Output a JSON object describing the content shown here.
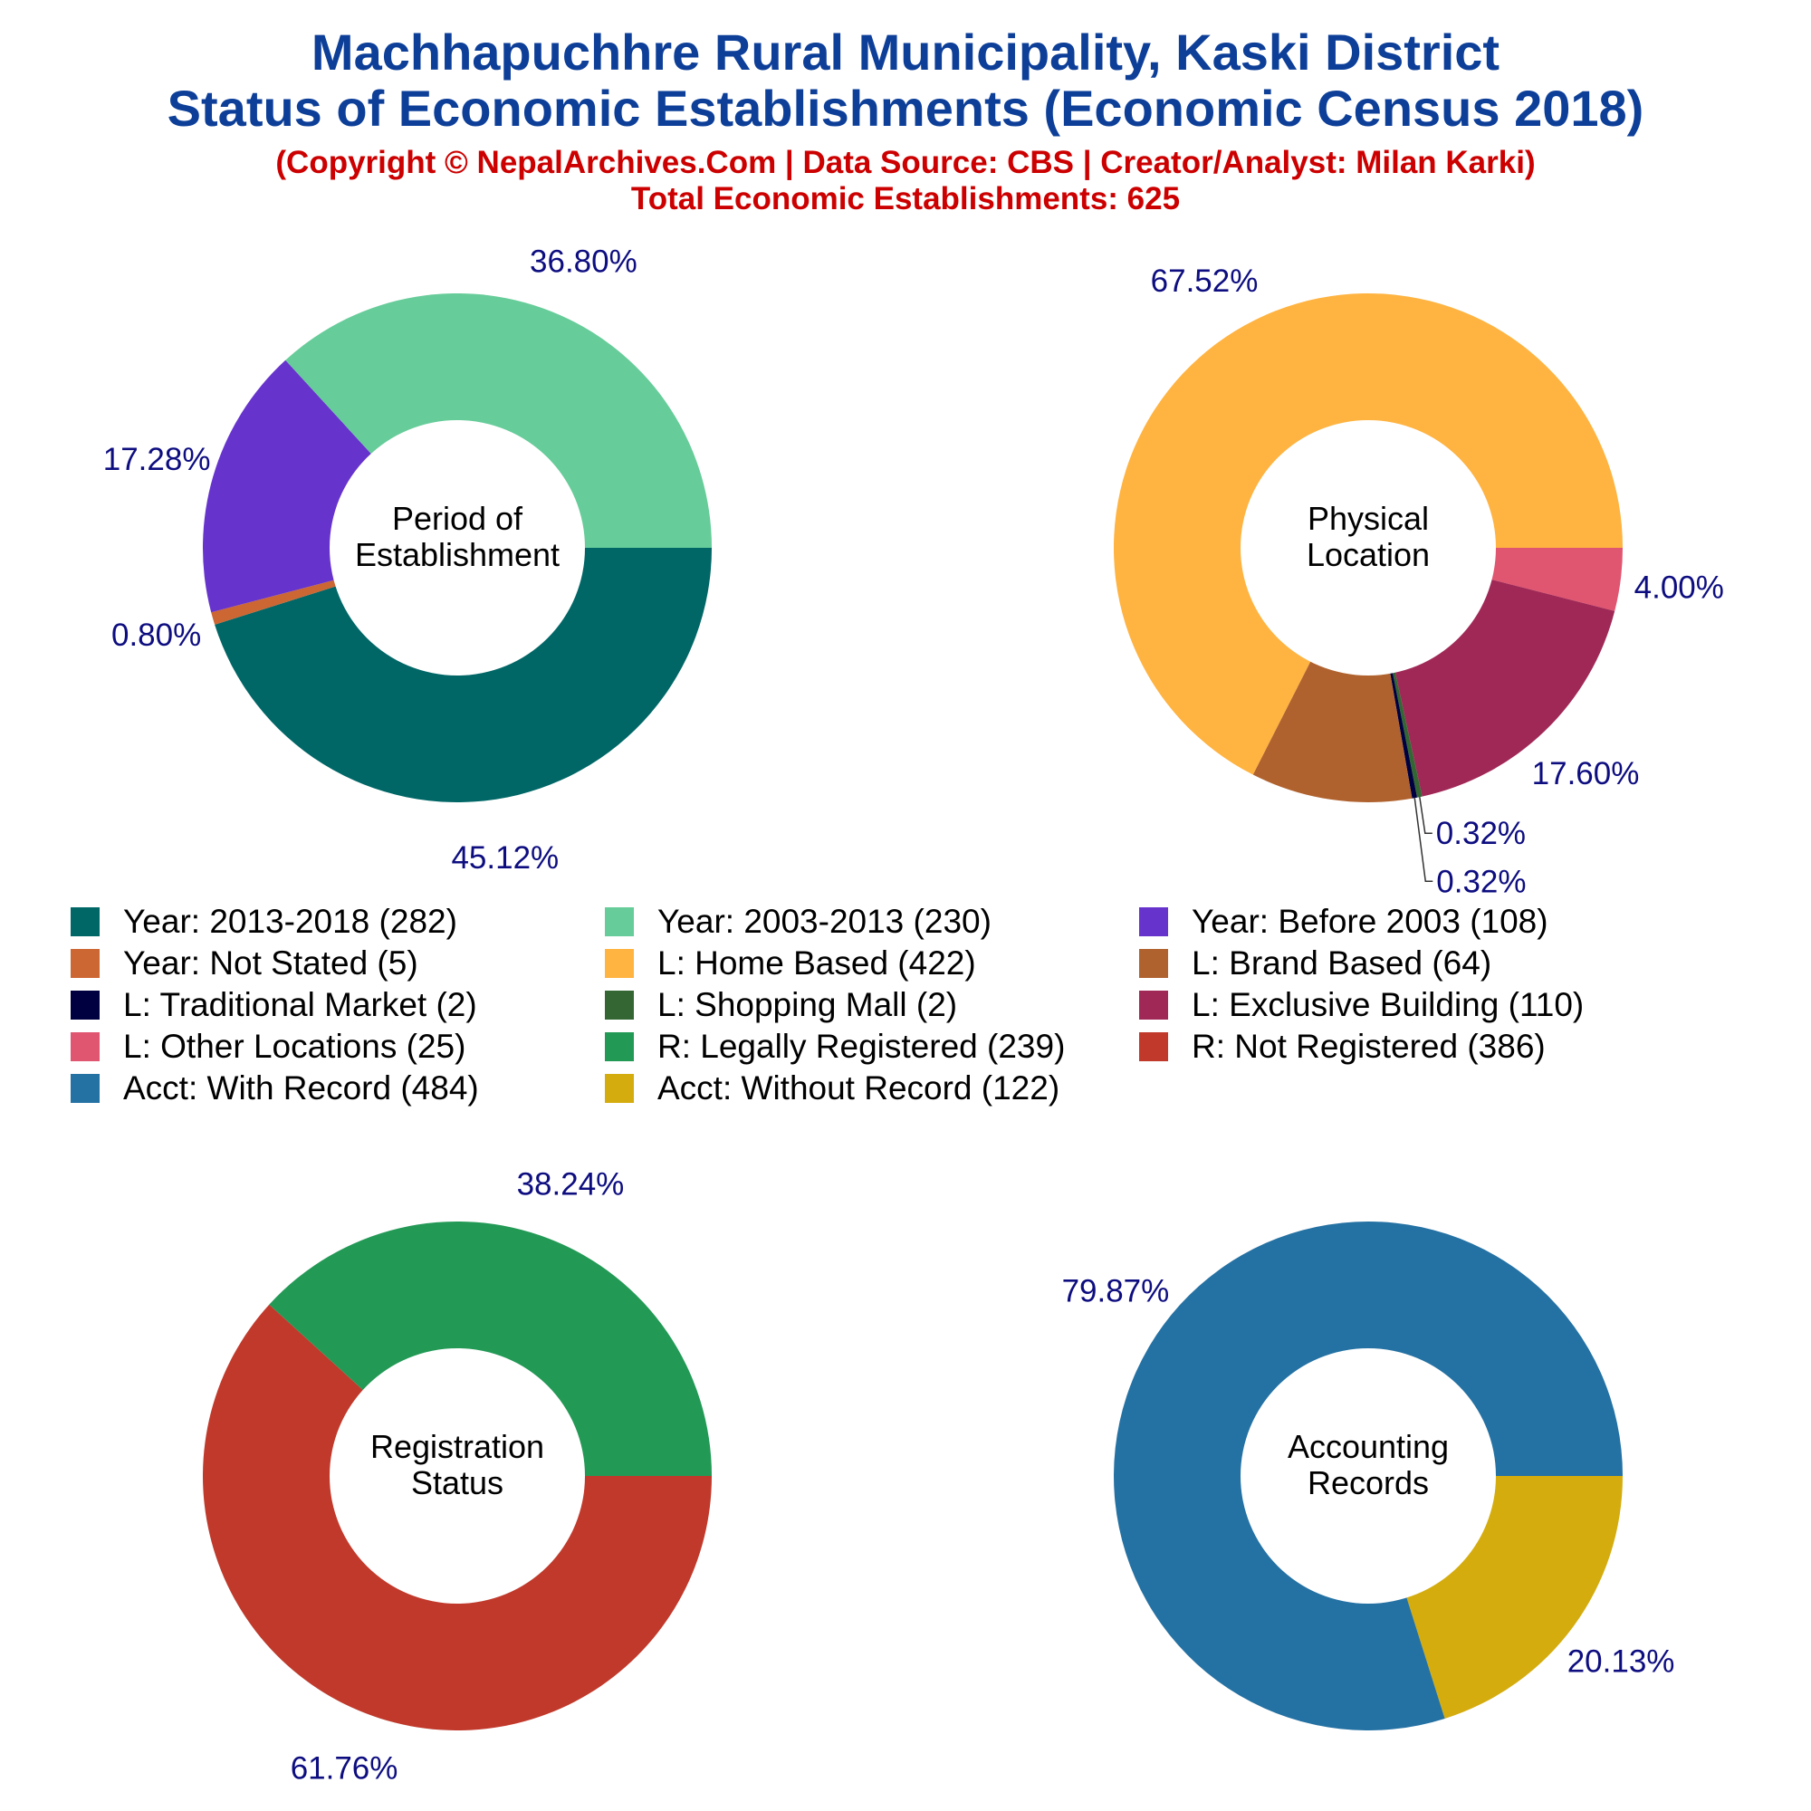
{
  "title_line1": "Machhapuchhre Rural Municipality, Kaski District",
  "title_line2": "Status of Economic Establishments (Economic Census 2018)",
  "subtitle_line1": "(Copyright © NepalArchives.Com | Data Source: CBS | Creator/Analyst: Milan Karki)",
  "subtitle_line2": "Total Economic Establishments: 625",
  "legend": [
    {
      "label": "Year: 2013-2018 (282)",
      "color": "#006666"
    },
    {
      "label": "Year: 2003-2013 (230)",
      "color": "#66cc99"
    },
    {
      "label": "Year: Before 2003 (108)",
      "color": "#6633cc"
    },
    {
      "label": "Year: Not Stated (5)",
      "color": "#cc6633"
    },
    {
      "label": "L: Home Based (422)",
      "color": "#ffb340"
    },
    {
      "label": "L: Brand Based (64)",
      "color": "#b0622e"
    },
    {
      "label": "L: Traditional Market (2)",
      "color": "#000040"
    },
    {
      "label": "L: Shopping Mall (2)",
      "color": "#336633"
    },
    {
      "label": "L: Exclusive Building (110)",
      "color": "#a02856"
    },
    {
      "label": "L: Other Locations (25)",
      "color": "#e05570"
    },
    {
      "label": "R: Legally Registered (239)",
      "color": "#229955"
    },
    {
      "label": "R: Not Registered (386)",
      "color": "#c0392b"
    },
    {
      "label": "Acct: With Record (484)",
      "color": "#2471a3"
    },
    {
      "label": "Acct: Without Record (122)",
      "color": "#d4ac0d"
    }
  ],
  "chart_data": [
    {
      "type": "pie",
      "center_label": [
        "Period of",
        "Establishment"
      ],
      "slices": [
        {
          "name": "Year: 2013-2018",
          "value": 282,
          "percent": "45.12%",
          "color": "#006666"
        },
        {
          "name": "Year: Not Stated",
          "value": 5,
          "percent": "0.80%",
          "color": "#cc6633"
        },
        {
          "name": "Year: Before 2003",
          "value": 108,
          "percent": "17.28%",
          "color": "#6633cc"
        },
        {
          "name": "Year: 2003-2013",
          "value": 230,
          "percent": "36.80%",
          "color": "#66cc99"
        }
      ]
    },
    {
      "type": "pie",
      "center_label": [
        "Physical",
        "Location"
      ],
      "slices": [
        {
          "name": "L: Other Locations",
          "value": 25,
          "percent": "4.00%",
          "color": "#e05570"
        },
        {
          "name": "L: Exclusive Building",
          "value": 110,
          "percent": "17.60%",
          "color": "#a02856"
        },
        {
          "name": "L: Shopping Mall",
          "value": 2,
          "percent": "0.32%",
          "color": "#336633"
        },
        {
          "name": "L: Traditional Market",
          "value": 2,
          "percent": "0.32%",
          "color": "#000040"
        },
        {
          "name": "L: Brand Based",
          "value": 64,
          "percent": "",
          "color": "#b0622e"
        },
        {
          "name": "L: Home Based",
          "value": 422,
          "percent": "67.52%",
          "color": "#ffb340"
        }
      ]
    },
    {
      "type": "pie",
      "center_label": [
        "Registration",
        "Status"
      ],
      "slices": [
        {
          "name": "R: Not Registered",
          "value": 386,
          "percent": "61.76%",
          "color": "#c0392b"
        },
        {
          "name": "R: Legally Registered",
          "value": 239,
          "percent": "38.24%",
          "color": "#229955"
        }
      ]
    },
    {
      "type": "pie",
      "center_label": [
        "Accounting",
        "Records"
      ],
      "slices": [
        {
          "name": "Acct: Without Record",
          "value": 122,
          "percent": "20.13%",
          "color": "#d4ac0d"
        },
        {
          "name": "Acct: With Record",
          "value": 484,
          "percent": "79.87%",
          "color": "#2471a3"
        }
      ]
    }
  ]
}
